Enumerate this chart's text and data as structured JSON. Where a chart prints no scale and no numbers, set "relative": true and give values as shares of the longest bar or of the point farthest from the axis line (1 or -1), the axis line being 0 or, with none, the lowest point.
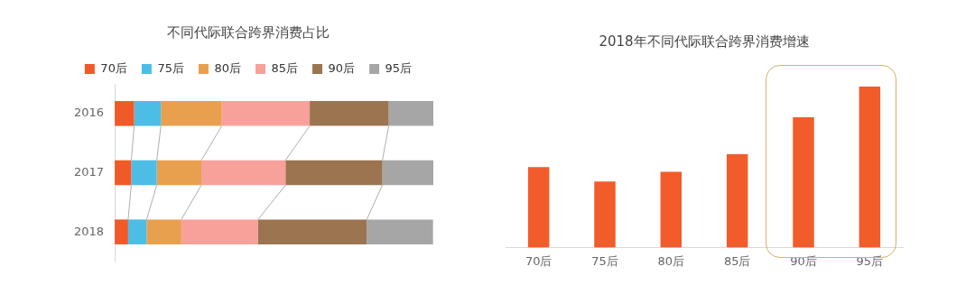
{
  "chart_data": [
    {
      "type": "bar",
      "title": "不同代际联合跨界消费占比",
      "orientation": "horizontal",
      "stacked": true,
      "relative": true,
      "legend": "top",
      "categories": [
        "2016",
        "2017",
        "2018"
      ],
      "series": [
        {
          "name": "70后",
          "color": "#f05a28",
          "values": [
            0.061,
            0.052,
            0.042
          ]
        },
        {
          "name": "75后",
          "color": "#4dbde6",
          "values": [
            0.084,
            0.08,
            0.058
          ]
        },
        {
          "name": "80后",
          "color": "#e8a04e",
          "values": [
            0.191,
            0.14,
            0.109
          ]
        },
        {
          "name": "85后",
          "color": "#f8a09a",
          "values": [
            0.276,
            0.264,
            0.241
          ]
        },
        {
          "name": "90后",
          "color": "#9b7450",
          "values": [
            0.248,
            0.304,
            0.341
          ]
        },
        {
          "name": "95后",
          "color": "#a6a6a6",
          "values": [
            0.14,
            0.16,
            0.208
          ]
        }
      ]
    },
    {
      "type": "bar",
      "title": "2018年不同代际联合跨界消费增速",
      "relative": true,
      "categories": [
        "70后",
        "75后",
        "80后",
        "85后",
        "90后",
        "95后"
      ],
      "values": [
        0.5,
        0.41,
        0.47,
        0.58,
        0.81,
        1.0
      ],
      "color": "#f25c2a"
    }
  ]
}
